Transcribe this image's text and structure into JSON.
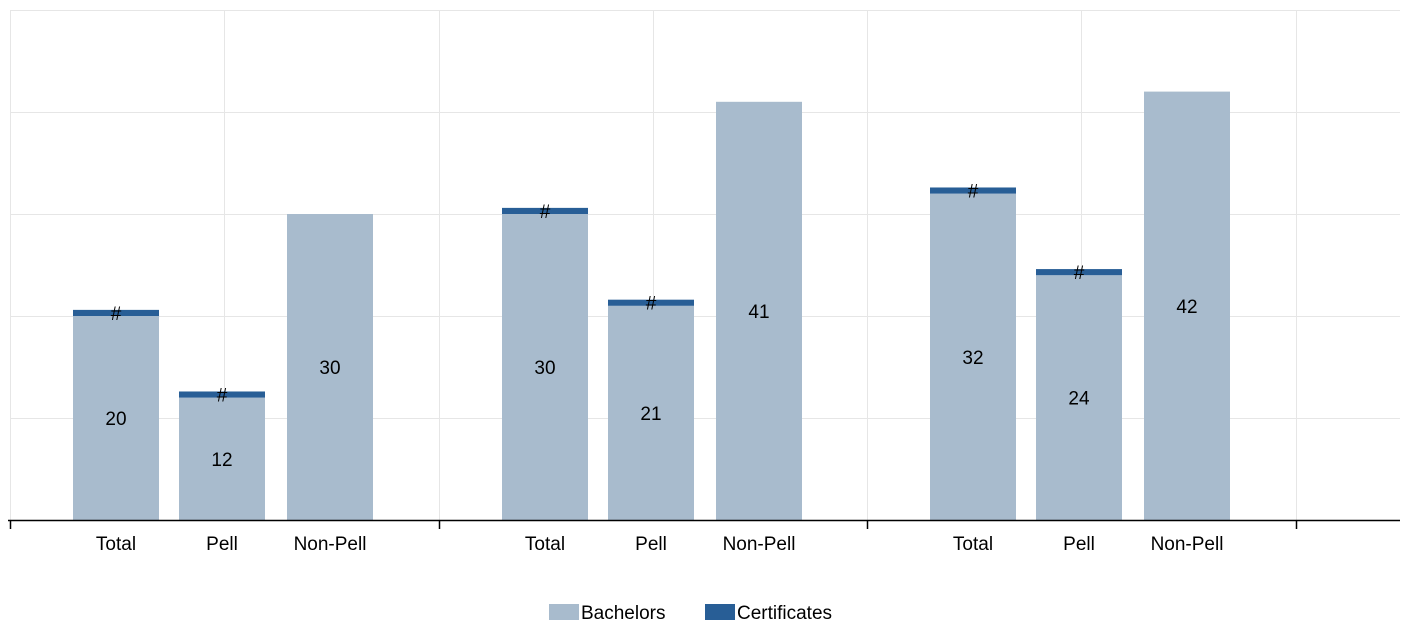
{
  "chart_data": {
    "type": "bar",
    "stacked": true,
    "groups": [
      {
        "categories": [
          "Total",
          "Pell",
          "Non-Pell"
        ],
        "series": [
          {
            "name": "Bachelors",
            "values": [
              20,
              12,
              30
            ],
            "labels": [
              "20",
              "12",
              "30"
            ]
          },
          {
            "name": "Certificates",
            "values": [
              0.6,
              0.6,
              0
            ],
            "labels": [
              "#",
              "#",
              ""
            ]
          }
        ]
      },
      {
        "categories": [
          "Total",
          "Pell",
          "Non-Pell"
        ],
        "series": [
          {
            "name": "Bachelors",
            "values": [
              30,
              21,
              41
            ],
            "labels": [
              "30",
              "21",
              "41"
            ]
          },
          {
            "name": "Certificates",
            "values": [
              0.6,
              0.6,
              0
            ],
            "labels": [
              "#",
              "#",
              ""
            ]
          }
        ]
      },
      {
        "categories": [
          "Total",
          "Pell",
          "Non-Pell"
        ],
        "series": [
          {
            "name": "Bachelors",
            "values": [
              32,
              24,
              42
            ],
            "labels": [
              "32",
              "24",
              "42"
            ]
          },
          {
            "name": "Certificates",
            "values": [
              0.6,
              0.6,
              0
            ],
            "labels": [
              "#",
              "#",
              ""
            ]
          }
        ]
      }
    ],
    "ylim": [
      0,
      50
    ],
    "y_gridlines": [
      10,
      20,
      30,
      40,
      50
    ],
    "grid": true,
    "legend": {
      "placement": "bottom-center",
      "entries": [
        {
          "name": "Bachelors",
          "color": "#a8bbcd"
        },
        {
          "name": "Certificates",
          "color": "#285e96"
        }
      ]
    },
    "colors": {
      "Bachelors": "#a8bbcd",
      "Certificates": "#285e96"
    }
  }
}
